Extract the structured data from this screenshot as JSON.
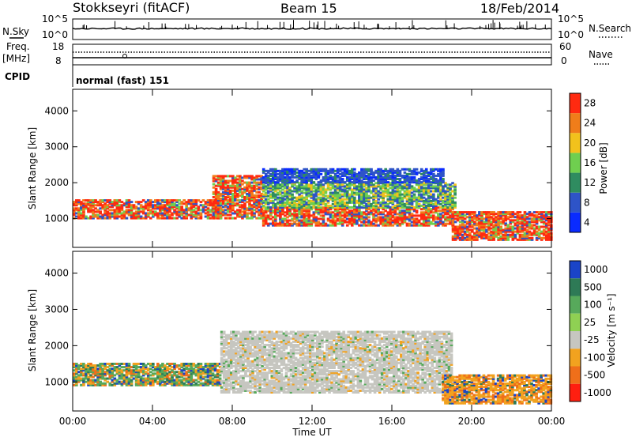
{
  "header": {
    "station": "Stokkseyri (fitACF)",
    "beam": "Beam 15",
    "date": "18/Feb/2014"
  },
  "params": {
    "nsky_label": "N.Sky",
    "nsky_ticks": [
      "10^5",
      "10^0"
    ],
    "nsearch_label": "N.Search",
    "nsearch_ticks": [
      "10^5",
      "10^0"
    ],
    "freq_label": "Freq.",
    "freq_unit": "[MHz]",
    "freq_ticks": [
      "18",
      "8"
    ],
    "nave_label": "Nave",
    "nave_ticks": [
      "60",
      "0"
    ],
    "cpid_label": "CPID",
    "cpid_text": "normal (fast) 151"
  },
  "chart_data": [
    {
      "type": "heatmap",
      "title": "",
      "xlabel": "Time UT",
      "ylabel": "Slant Range [km]",
      "x_ticks": [
        "00:00",
        "04:00",
        "08:00",
        "12:00",
        "16:00",
        "20:00",
        "00:00"
      ],
      "y_ticks": [
        "1000",
        "2000",
        "3000",
        "4000"
      ],
      "ylim": [
        200,
        4600
      ],
      "colorbar": {
        "label": "Power [dB]",
        "ticks": [
          "4",
          "8",
          "12",
          "16",
          "20",
          "24",
          "28"
        ],
        "colors": [
          "#0a2bff",
          "#2e54c8",
          "#2f8c60",
          "#6fcf4f",
          "#f2c21c",
          "#f07d1a",
          "#ff2a10"
        ]
      },
      "bands": [
        {
          "t_start": 0.0,
          "t_end": 7.4,
          "range": [
            1000,
            1500
          ],
          "level": "high"
        },
        {
          "t_start": 7.0,
          "t_end": 9.4,
          "range": [
            1000,
            2200
          ],
          "level": "high"
        },
        {
          "t_start": 9.5,
          "t_end": 19.0,
          "range": [
            800,
            1300
          ],
          "level": "high"
        },
        {
          "t_start": 9.5,
          "t_end": 19.2,
          "range": [
            1300,
            2000
          ],
          "level": "medium"
        },
        {
          "t_start": 9.5,
          "t_end": 18.5,
          "range": [
            2000,
            2400
          ],
          "level": "low"
        },
        {
          "t_start": 19.0,
          "t_end": 24.0,
          "range": [
            400,
            1200
          ],
          "level": "high"
        }
      ]
    },
    {
      "type": "heatmap",
      "title": "",
      "xlabel": "Time UT",
      "ylabel": "Slant Range [km]",
      "x_ticks": [
        "00:00",
        "04:00",
        "08:00",
        "12:00",
        "16:00",
        "20:00",
        "00:00"
      ],
      "y_ticks": [
        "1000",
        "2000",
        "3000",
        "4000"
      ],
      "ylim": [
        200,
        4600
      ],
      "colorbar": {
        "label": "Velocity [m s⁻¹]",
        "ticks": [
          "1000",
          "500",
          "100",
          "25",
          "-25",
          "-100",
          "-500",
          "-1000"
        ],
        "colors": [
          "#1a44c8",
          "#2e7a56",
          "#57a95b",
          "#8fd053",
          "#c6c6c0",
          "#f2a21f",
          "#ef6f1a",
          "#ff1f10"
        ]
      },
      "bands": [
        {
          "t_start": 0.0,
          "t_end": 7.4,
          "range": [
            900,
            1500
          ],
          "level": "mixed"
        },
        {
          "t_start": 7.4,
          "t_end": 19.0,
          "range": [
            700,
            2400
          ],
          "level": "ground"
        },
        {
          "t_start": 18.5,
          "t_end": 24.0,
          "range": [
            400,
            1200
          ],
          "level": "negative"
        }
      ]
    }
  ]
}
